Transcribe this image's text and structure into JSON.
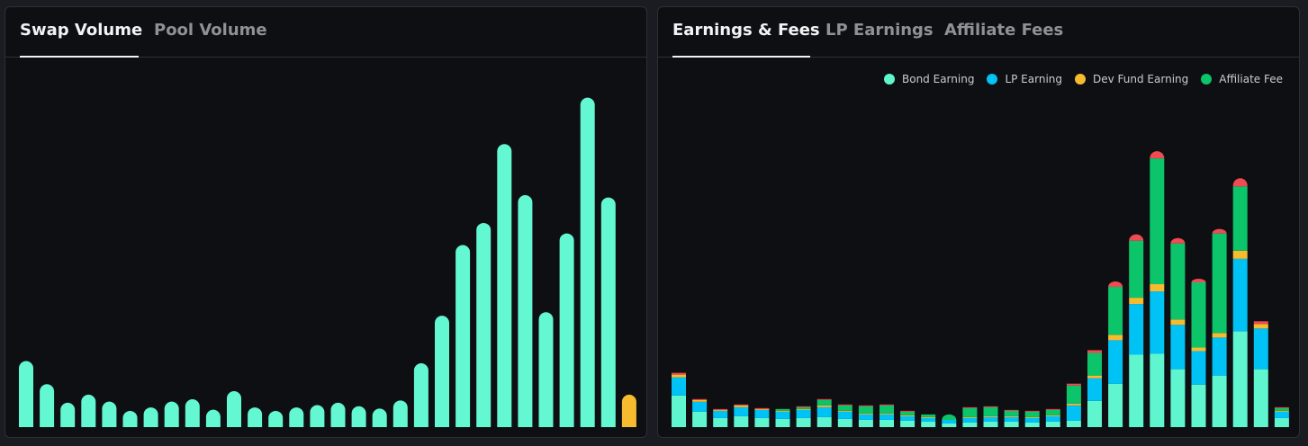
{
  "left_panel": {
    "tabs": [
      {
        "label": "Swap Volume",
        "active": true
      },
      {
        "label": "Pool Volume",
        "active": false
      }
    ]
  },
  "right_panel": {
    "tabs": [
      {
        "label": "Earnings & Fees",
        "active": true
      },
      {
        "label": "LP Earnings",
        "active": false
      },
      {
        "label": "Affiliate Fees",
        "active": false
      }
    ],
    "legend": [
      {
        "name": "Bond Earning",
        "color": "#5ff5cf"
      },
      {
        "name": "LP Earning",
        "color": "#00c2f5"
      },
      {
        "name": "Dev Fund Earning",
        "color": "#f7bb2f"
      },
      {
        "name": "Affiliate Fee",
        "color": "#0cc46a"
      }
    ]
  },
  "chart_data": [
    {
      "type": "bar",
      "bar_color": "#63f7d2",
      "highlight_color": "#f7bb2f",
      "values": [
        57,
        37,
        21,
        28,
        22,
        14,
        17,
        22,
        24,
        15,
        31,
        17,
        14,
        17,
        19,
        21,
        18,
        16,
        23,
        55,
        96,
        157,
        176,
        244,
        200,
        99,
        167,
        284,
        198,
        28
      ],
      "highlight_last": true,
      "ylim": [
        0,
        300
      ]
    },
    {
      "type": "bar",
      "stacked": true,
      "series_colors": [
        "#5ff5cf",
        "#00c2f5",
        "#f7bb2f",
        "#0cc46a",
        "#f04a52"
      ],
      "series": [
        {
          "name": "Bond Earning",
          "values": [
            35,
            17,
            10,
            12,
            10,
            9,
            10,
            11,
            9,
            8,
            8,
            7,
            6,
            4,
            5,
            6,
            6,
            5,
            6,
            7,
            29,
            48,
            80,
            81,
            64,
            47,
            57,
            106,
            64,
            10
          ]
        },
        {
          "name": "LP Earning",
          "values": [
            20,
            11,
            8,
            10,
            9,
            8,
            9,
            11,
            8,
            6,
            6,
            5,
            4,
            4,
            5,
            5,
            5,
            5,
            6,
            17,
            25,
            48,
            56,
            69,
            49,
            37,
            42,
            80,
            45,
            7
          ]
        },
        {
          "name": "Dev Fund Earning",
          "values": [
            3,
            2,
            1,
            2,
            1,
            1,
            1,
            2,
            1,
            1,
            1,
            1,
            1,
            0,
            1,
            1,
            1,
            1,
            1,
            2,
            3,
            6,
            7,
            8,
            6,
            4,
            5,
            9,
            5,
            1
          ]
        },
        {
          "name": "Affiliate Fee",
          "values": [
            0,
            0,
            0,
            0,
            0,
            2,
            2,
            6,
            6,
            8,
            9,
            4,
            3,
            6,
            10,
            10,
            6,
            6,
            6,
            20,
            25,
            53,
            63,
            139,
            84,
            72,
            110,
            71,
            0,
            3
          ]
        },
        {
          "name": "",
          "values": [
            2,
            1,
            1,
            1,
            1,
            0,
            1,
            1,
            1,
            1,
            1,
            1,
            0,
            0,
            1,
            1,
            1,
            1,
            1,
            2,
            3,
            6,
            7,
            8,
            6,
            4,
            5,
            9,
            3,
            1
          ]
        }
      ],
      "ylim": [
        0,
        320
      ]
    }
  ]
}
